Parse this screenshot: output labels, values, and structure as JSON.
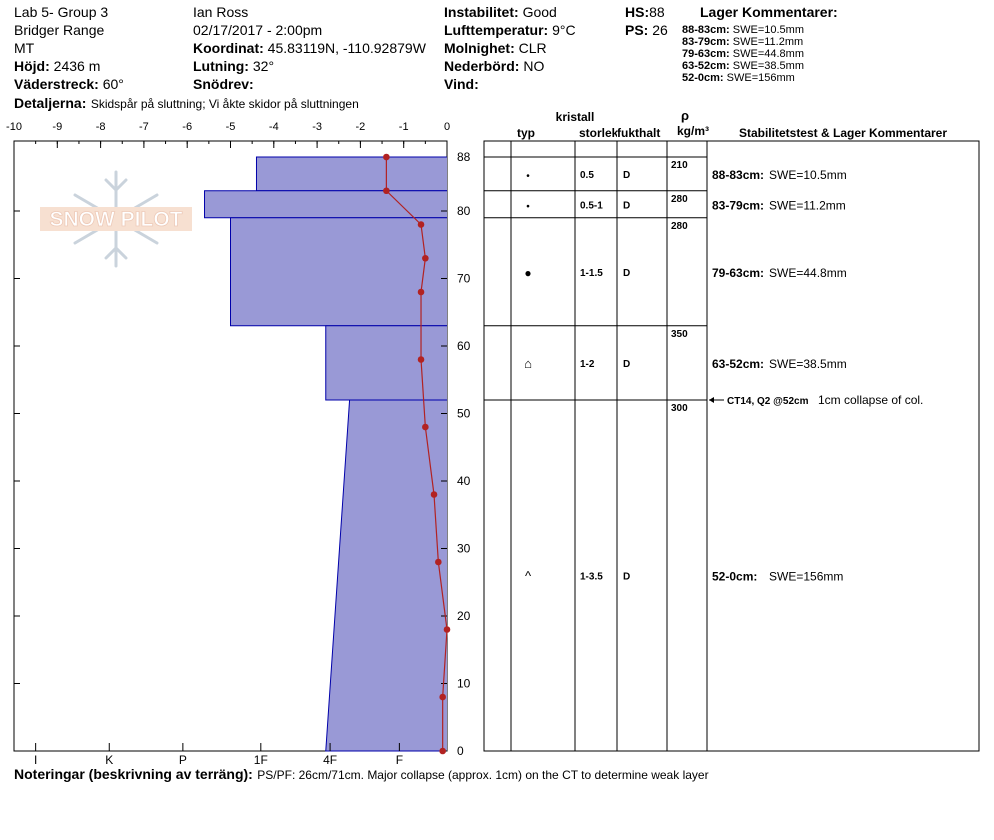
{
  "header": {
    "col1": [
      "Lab 5- Group 3",
      "Bridger Range",
      "MT"
    ],
    "elev_label": "Höjd:",
    "elev_value": "2436 m",
    "aspect_label": "Väderstreck:",
    "aspect_value": "60°",
    "details_label": "Detaljerna:",
    "details_value": "Skidspår på sluttning;  Vi åkte skidor på sluttningen",
    "observer": "Ian Ross",
    "datetime": "02/17/2017 - 2:00pm",
    "coord_label": "Koordinat:",
    "coord_value": "45.83119N, -110.92879W",
    "slope_label": "Lutning:",
    "slope_value": "32°",
    "snow_label": "Snödrev:",
    "stab_label": "Instabilitet:",
    "stab_value": "Good",
    "air_label": "Lufttemperatur:",
    "air_value": "9°C",
    "sky_label": "Molnighet:",
    "sky_value": "CLR",
    "precip_label": "Nederbörd:",
    "precip_value": "NO",
    "wind_label": "Vind:",
    "hs_label": "HS:",
    "hs_value": "88",
    "ps_label": "PS:",
    "ps_value": "26",
    "layer_comments_title": "Lager Kommentarer:",
    "layer_comments": [
      {
        "range": "88-83cm:",
        "swe": "SWE=10.5mm"
      },
      {
        "range": "83-79cm:",
        "swe": "SWE=11.2mm"
      },
      {
        "range": "79-63cm:",
        "swe": "SWE=44.8mm"
      },
      {
        "range": "63-52cm:",
        "swe": "SWE=38.5mm"
      },
      {
        "range": "52-0cm:",
        "swe": "SWE=156mm"
      }
    ]
  },
  "logo_text": "SNOW PILOT",
  "footer": {
    "label": "Noteringar (beskrivning av terräng):",
    "text": "PS/PF: 26cm/71cm. Major collapse (approx. 1cm) on the CT to determine weak layer"
  },
  "chart_data": {
    "type": "snow_profile",
    "temp_axis": {
      "ticks": [
        "-10",
        "-9",
        "-8",
        "-7",
        "-6",
        "-5",
        "-4",
        "-3",
        "-2",
        "-1",
        "0"
      ],
      "range": [
        -10,
        0
      ]
    },
    "depth_axis": {
      "ticks": [
        "0",
        "10",
        "20",
        "30",
        "40",
        "50",
        "60",
        "70",
        "80",
        "88"
      ],
      "range": [
        0,
        88
      ]
    },
    "hardness_axis": {
      "ticks": [
        "I",
        "K",
        "P",
        "1F",
        "4F",
        "F"
      ]
    },
    "hardness_profile": [
      {
        "top": 88,
        "bottom": 83,
        "hardness_top": -4.4,
        "hardness_bottom": -4.4
      },
      {
        "top": 83,
        "bottom": 79,
        "hardness_top": -5.6,
        "hardness_bottom": -5.6
      },
      {
        "top": 79,
        "bottom": 63,
        "hardness_top": -5.0,
        "hardness_bottom": -5.0
      },
      {
        "top": 63,
        "bottom": 52,
        "hardness_top": -2.8,
        "hardness_bottom": -2.8
      },
      {
        "top": 52,
        "bottom": 0,
        "hardness_top": -2.25,
        "hardness_bottom": -2.8
      }
    ],
    "temperature_profile": [
      {
        "depth": 88,
        "temp": -1.4
      },
      {
        "depth": 83,
        "temp": -1.4
      },
      {
        "depth": 78,
        "temp": -0.6
      },
      {
        "depth": 73,
        "temp": -0.5
      },
      {
        "depth": 68,
        "temp": -0.6
      },
      {
        "depth": 58,
        "temp": -0.6
      },
      {
        "depth": 48,
        "temp": -0.5
      },
      {
        "depth": 38,
        "temp": -0.3
      },
      {
        "depth": 28,
        "temp": -0.2
      },
      {
        "depth": 18,
        "temp": 0.0
      },
      {
        "depth": 8,
        "temp": -0.1
      },
      {
        "depth": 0,
        "temp": -0.1
      }
    ],
    "table_headers": {
      "type": "typ",
      "crystal": "kristall",
      "size": "storlek",
      "moisture": "fukthalt",
      "rho": "ρ",
      "density_unit": "kg/m³",
      "comments": "Stabilitetstest & Lager Kommentarer"
    },
    "layers": [
      {
        "top": 88,
        "bottom": 83,
        "symbol": "•",
        "size": "0.5",
        "moisture": "D",
        "density": "210",
        "comment_range": "88-83cm:",
        "comment_text": "SWE=10.5mm"
      },
      {
        "top": 83,
        "bottom": 79,
        "symbol": "•",
        "size": "0.5-1",
        "moisture": "D",
        "density": "280",
        "comment_range": "83-79cm:",
        "comment_text": "SWE=11.2mm"
      },
      {
        "top": 79,
        "bottom": 63,
        "symbol": "●",
        "size": "1-1.5",
        "moisture": "D",
        "density": "280",
        "comment_range": "79-63cm:",
        "comment_text": "SWE=44.8mm"
      },
      {
        "top": 63,
        "bottom": 52,
        "symbol": "⌂",
        "size": "1-2",
        "moisture": "D",
        "density": "350",
        "comment_range": "63-52cm:",
        "comment_text": "SWE=38.5mm"
      },
      {
        "top": 52,
        "bottom": 0,
        "symbol": "^",
        "size": "1-3.5",
        "moisture": "D",
        "density": "300",
        "comment_range": "52-0cm:",
        "comment_text": "SWE=156mm"
      }
    ],
    "stability_test": {
      "depth": 52,
      "label": "CT14, Q2 @52cm",
      "comment": "1cm collapse of col."
    },
    "colors": {
      "hardness_fill": "#9999d6",
      "hardness_stroke": "#0000aa",
      "temperature": "#b22222"
    }
  }
}
